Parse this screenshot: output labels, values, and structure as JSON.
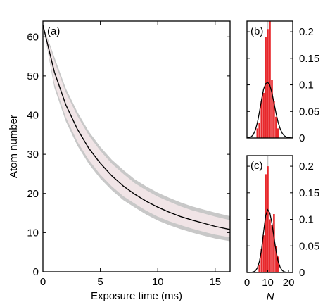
{
  "chart_data": [
    {
      "id": "a",
      "type": "line",
      "panel_label": "(a)",
      "xlabel": "Exposure time (ms)",
      "ylabel": "Atom number",
      "xlim": [
        0,
        16.3
      ],
      "ylim": [
        0,
        64
      ],
      "xticks": [
        0,
        5,
        10,
        15
      ],
      "yticks": [
        0,
        10,
        20,
        30,
        40,
        50,
        60
      ],
      "grid": false,
      "colors": {
        "line": "#000000",
        "band_inner": "#f0e4e6",
        "band_outer": "#c8c8c8"
      },
      "series": [
        {
          "role": "fit",
          "x": [
            0,
            1,
            2,
            3,
            4,
            5,
            6,
            7,
            8,
            9,
            10,
            11,
            12,
            13,
            14,
            15,
            16.3
          ],
          "y": [
            63.0,
            51.0,
            42.6,
            36.4,
            31.5,
            27.7,
            24.5,
            21.9,
            19.8,
            18.0,
            16.5,
            15.2,
            14.1,
            13.2,
            12.4,
            11.6,
            10.8
          ]
        },
        {
          "role": "band-inner-upper",
          "x": [
            0,
            1,
            2,
            3,
            4,
            5,
            6,
            7,
            8,
            9,
            10,
            11,
            12,
            13,
            14,
            15,
            16.3
          ],
          "y": [
            63.0,
            53.8,
            45.8,
            39.8,
            34.8,
            30.9,
            27.6,
            25.0,
            22.6,
            20.8,
            19.2,
            17.9,
            16.7,
            15.7,
            14.9,
            14.1,
            13.2
          ]
        },
        {
          "role": "band-inner-lower",
          "x": [
            0,
            1,
            2,
            3,
            4,
            5,
            6,
            7,
            8,
            9,
            10,
            11,
            12,
            13,
            14,
            15,
            16.3
          ],
          "y": [
            63.0,
            48.0,
            39.4,
            33.2,
            28.5,
            24.8,
            21.8,
            19.3,
            17.4,
            15.6,
            14.1,
            12.9,
            11.9,
            11.0,
            10.2,
            9.5,
            8.8
          ]
        },
        {
          "role": "band-outer-upper",
          "x": [
            0,
            1,
            2,
            3,
            4,
            5,
            6,
            7,
            8,
            9,
            10,
            11,
            12,
            13,
            14,
            15,
            16.3
          ],
          "y": [
            63.0,
            54.8,
            46.8,
            40.8,
            35.8,
            31.9,
            28.6,
            26.0,
            23.6,
            21.8,
            20.2,
            18.9,
            17.7,
            16.7,
            15.9,
            15.1,
            14.2
          ]
        },
        {
          "role": "band-outer-lower",
          "x": [
            0,
            1,
            2,
            3,
            4,
            5,
            6,
            7,
            8,
            9,
            10,
            11,
            12,
            13,
            14,
            15,
            16.3
          ],
          "y": [
            63.0,
            47.0,
            38.4,
            32.2,
            27.5,
            23.8,
            20.8,
            18.3,
            16.4,
            14.6,
            13.1,
            11.9,
            10.9,
            10.0,
            9.2,
            8.5,
            7.8
          ]
        }
      ]
    },
    {
      "id": "b",
      "type": "bar",
      "panel_label": "(b)",
      "xlim": [
        0,
        22
      ],
      "ylim": [
        0,
        0.22
      ],
      "yticks": [
        0,
        0.05,
        0.1,
        0.15,
        0.2
      ],
      "ytick_labels": [
        "0",
        "0.05",
        "0.1",
        "0.15",
        "0.2"
      ],
      "grid": false,
      "colors": {
        "bars": "#e8282c",
        "curve": "#000000",
        "marker": "#c8c8c8"
      },
      "marker_x": 10,
      "bars": {
        "x": [
          5,
          6,
          7,
          8,
          9,
          10,
          11,
          12,
          13,
          14,
          15
        ],
        "values": [
          0.018,
          0.028,
          0.07,
          0.085,
          0.19,
          0.205,
          0.22,
          0.11,
          0.07,
          0.04,
          0.018
        ]
      },
      "curve": {
        "x": [
          0,
          1,
          2,
          3,
          4,
          5,
          6,
          7,
          8,
          9,
          10,
          11,
          12,
          13,
          14,
          15,
          16,
          17,
          18,
          19,
          20,
          21,
          22
        ],
        "y": [
          0.0002,
          0.0007,
          0.0023,
          0.0063,
          0.0146,
          0.0289,
          0.049,
          0.072,
          0.0918,
          0.1022,
          0.1048,
          0.0994,
          0.085,
          0.0657,
          0.0461,
          0.0293,
          0.0169,
          0.0088,
          0.0041,
          0.0017,
          0.0006,
          0.0002,
          0.0001
        ]
      }
    },
    {
      "id": "c",
      "type": "bar",
      "panel_label": "(c)",
      "xlabel": "N",
      "xlim": [
        0,
        22
      ],
      "ylim": [
        0,
        0.22
      ],
      "xticks": [
        0,
        10,
        20
      ],
      "yticks": [
        0,
        0.05,
        0.1,
        0.15,
        0.2
      ],
      "ytick_labels": [
        "0",
        "0.05",
        "0.1",
        "0.15",
        "0.2"
      ],
      "grid": false,
      "colors": {
        "bars": "#e8282c",
        "curve": "#000000",
        "marker": "#c8c8c8"
      },
      "marker_x": 10,
      "bars": {
        "x": [
          6,
          7,
          8,
          9,
          10,
          11,
          12,
          13,
          14,
          15
        ],
        "values": [
          0.015,
          0.045,
          0.07,
          0.185,
          0.2,
          0.1,
          0.09,
          0.11,
          0.05,
          0.03
        ]
      },
      "curve": {
        "x": [
          0,
          1,
          2,
          3,
          4,
          5,
          6,
          7,
          8,
          9,
          10,
          11,
          12,
          13,
          14,
          15,
          16,
          17,
          18,
          19,
          20,
          21,
          22
        ],
        "y": [
          0.0,
          0.0,
          0.0002,
          0.0009,
          0.003,
          0.0086,
          0.021,
          0.0433,
          0.0761,
          0.1072,
          0.1182,
          0.112,
          0.0926,
          0.0658,
          0.0401,
          0.021,
          0.0094,
          0.0036,
          0.0012,
          0.0003,
          0.0001,
          0.0,
          0.0
        ]
      }
    }
  ]
}
